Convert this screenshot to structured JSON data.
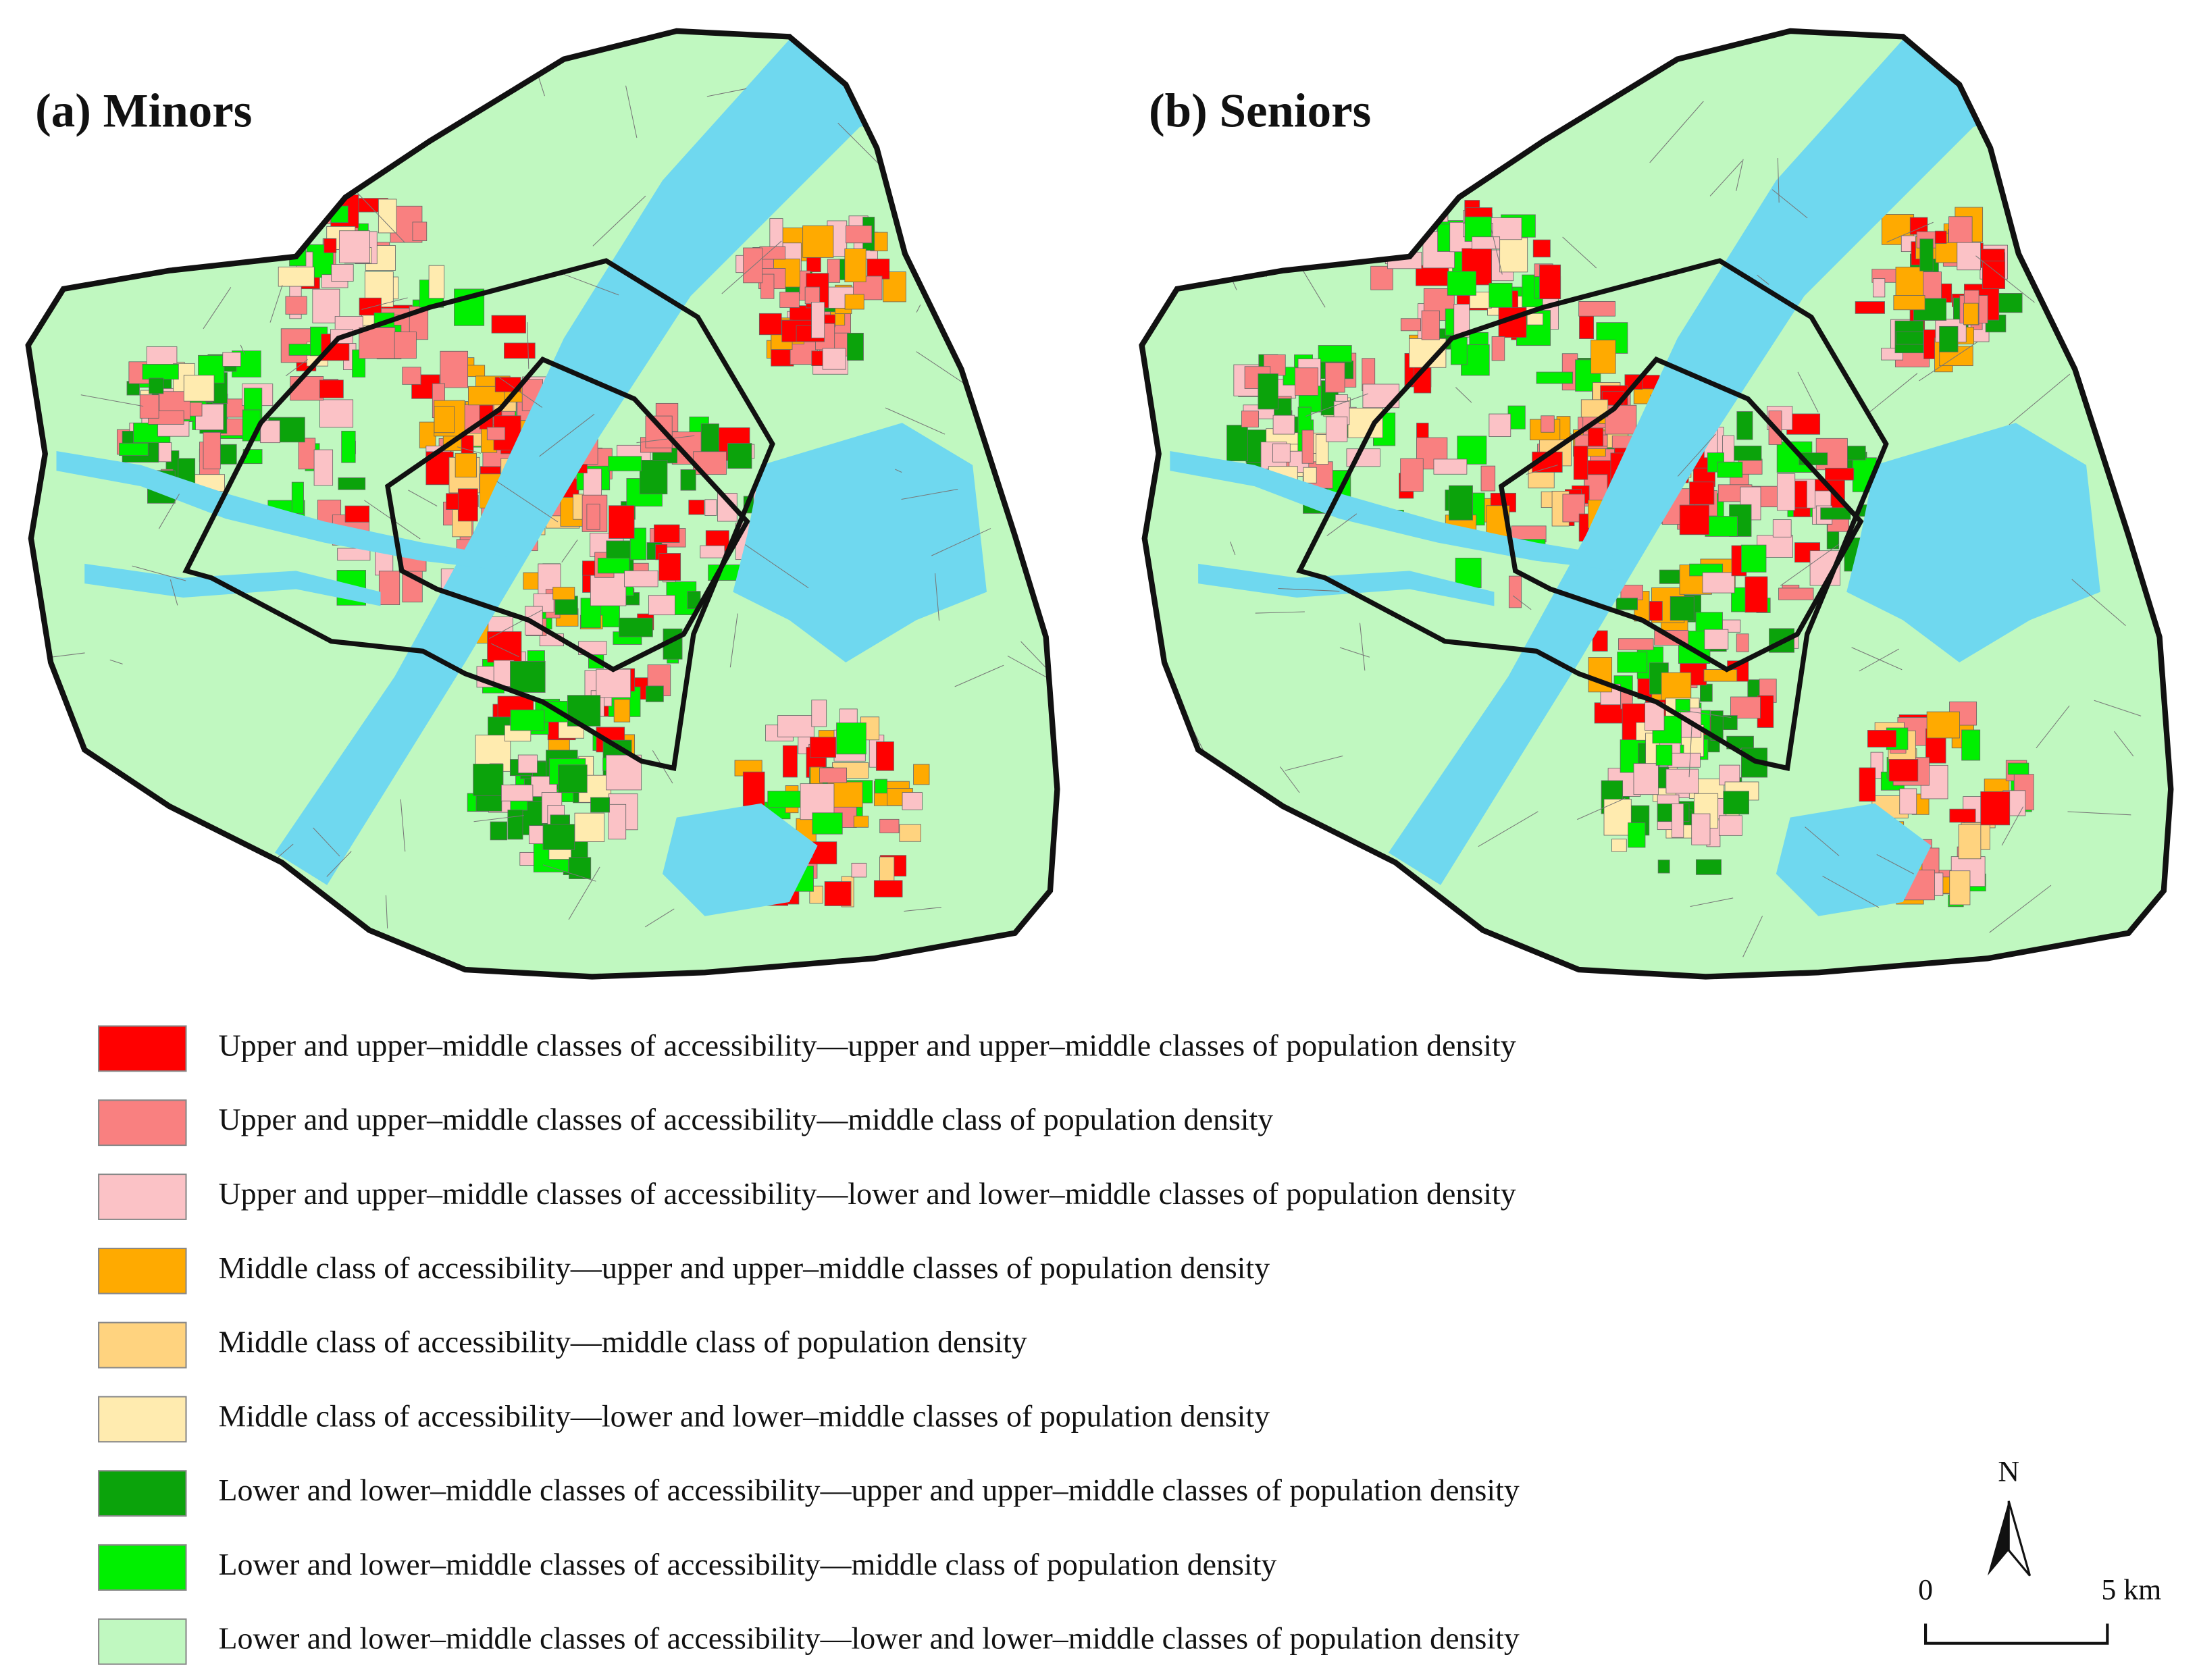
{
  "panels": [
    {
      "title": "(a) Minors"
    },
    {
      "title": "(b) Seniors"
    }
  ],
  "legend": [
    {
      "label": "Upper and upper–middle classes of accessibility—upper and upper–middle classes of population density",
      "color": "#ff0000"
    },
    {
      "label": "Upper and upper–middle classes of accessibility—middle class of population density",
      "color": "#f98080"
    },
    {
      "label": "Upper and upper–middle classes of accessibility—lower and lower–middle classes of population density",
      "color": "#fbc2c6"
    },
    {
      "label": "Middle class of accessibility—upper and upper–middle classes of population density",
      "color": "#ffaa00"
    },
    {
      "label": "Middle class of accessibility—middle class of population density",
      "color": "#ffd37f"
    },
    {
      "label": "Middle class of accessibility—lower and lower–middle classes of population density",
      "color": "#ffebaf"
    },
    {
      "label": "Lower and lower–middle classes of accessibility—upper and upper–middle classes of population density",
      "color": "#0ba30b"
    },
    {
      "label": "Lower and lower–middle classes of accessibility—middle class of population density",
      "color": "#00f000"
    },
    {
      "label": "Lower and lower–middle classes of accessibility—lower and lower–middle classes of population density",
      "color": "#c0f8c0"
    }
  ],
  "north_arrow": {
    "label": "N"
  },
  "scale_bar": {
    "labels": [
      "0",
      "5 km"
    ]
  }
}
